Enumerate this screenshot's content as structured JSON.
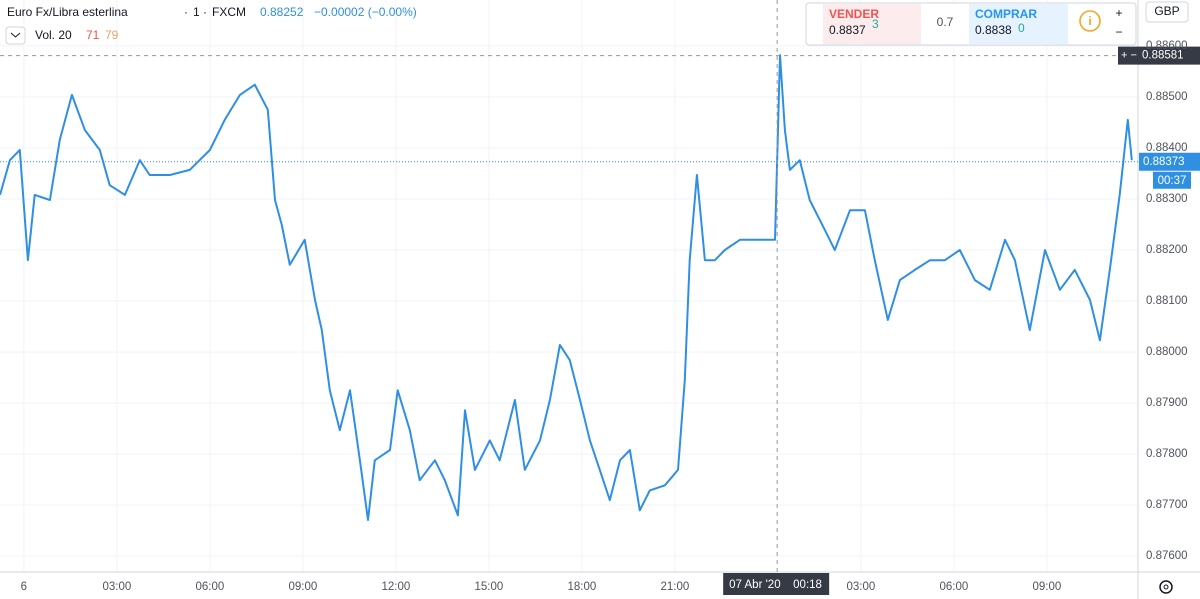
{
  "header": {
    "symbol": "Euro Fx/Libra esterlina",
    "interval": "1",
    "exchange": "FXCM",
    "price": "0.88252",
    "change": "−0.00002 (−0.00%)",
    "volume_label": "Vol. 20",
    "volume_a": "71",
    "volume_b": "79",
    "currency": "GBP"
  },
  "trade_panel": {
    "sell_label": "VENDER",
    "sell_price": "0.8837",
    "sell_sup": "3",
    "spread": "0.7",
    "buy_label": "COMPRAR",
    "buy_price": "0.8838",
    "buy_sup": "0"
  },
  "chart_data": {
    "type": "line",
    "x": [
      -0.77,
      -0.45,
      -0.13,
      0.13,
      0.35,
      0.84,
      1.16,
      1.55,
      1.97,
      2.45,
      2.77,
      3.26,
      3.74,
      4.06,
      4.71,
      5.35,
      6.0,
      6.48,
      6.97,
      7.45,
      7.87,
      8.1,
      8.32,
      8.58,
      9.06,
      9.39,
      9.61,
      9.87,
      10.19,
      10.52,
      10.84,
      11.1,
      11.32,
      11.81,
      12.06,
      12.45,
      12.77,
      13.26,
      13.58,
      14.0,
      14.23,
      14.55,
      15.03,
      15.35,
      15.84,
      16.16,
      16.65,
      16.97,
      17.29,
      17.61,
      17.94,
      18.26,
      18.58,
      18.9,
      19.23,
      19.55,
      19.87,
      20.19,
      20.68,
      21.1,
      21.32,
      21.48,
      21.71,
      21.97,
      22.29,
      22.61,
      23.1,
      23.74,
      24.23,
      24.39,
      24.55,
      24.71,
      25.03,
      25.35,
      25.84,
      26.16,
      26.65,
      27.13,
      27.45,
      27.87,
      28.26,
      28.74,
      29.23,
      29.71,
      30.19,
      30.68,
      31.16,
      31.65,
      31.97,
      32.45,
      32.94,
      33.42,
      33.9,
      34.39,
      34.71,
      35.03,
      35.35,
      35.61,
      35.74
    ],
    "series": [
      {
        "color": "#2f8fe3",
        "values": [
          0.88308,
          0.88376,
          0.88396,
          0.8818,
          0.88308,
          0.88298,
          0.88416,
          0.88504,
          0.88435,
          0.88396,
          0.88327,
          0.88308,
          0.88376,
          0.88347,
          0.88347,
          0.88357,
          0.88396,
          0.88455,
          0.88504,
          0.88524,
          0.88475,
          0.88298,
          0.88249,
          0.88171,
          0.8822,
          0.88102,
          0.88043,
          0.87925,
          0.87847,
          0.87925,
          0.87788,
          0.87671,
          0.87788,
          0.87808,
          0.87925,
          0.87847,
          0.87749,
          0.87788,
          0.87749,
          0.8768,
          0.87886,
          0.87769,
          0.87827,
          0.87788,
          0.87906,
          0.87769,
          0.87827,
          0.87906,
          0.88014,
          0.87984,
          0.87906,
          0.87827,
          0.87769,
          0.8771,
          0.87788,
          0.87808,
          0.8769,
          0.87729,
          0.87739,
          0.87769,
          0.87945,
          0.8818,
          0.88347,
          0.8818,
          0.8818,
          0.882,
          0.8822,
          0.8822,
          0.8822,
          0.88582,
          0.88435,
          0.88357,
          0.88376,
          0.88298,
          0.88239,
          0.882,
          0.88278,
          0.88278,
          0.8818,
          0.88063,
          0.88141,
          0.88161,
          0.8818,
          0.8818,
          0.882,
          0.88141,
          0.88122,
          0.8822,
          0.8818,
          0.88043,
          0.882,
          0.88122,
          0.88161,
          0.88102,
          0.88023,
          0.88161,
          0.88308,
          0.88455,
          0.88376
        ]
      }
    ],
    "xlim": [
      -0.77,
      35.94
    ],
    "xticks": [
      {
        "value": 0,
        "label": "6"
      },
      {
        "value": 3,
        "label": "03:00"
      },
      {
        "value": 6,
        "label": "06:00"
      },
      {
        "value": 9,
        "label": "09:00"
      },
      {
        "value": 12,
        "label": "12:00"
      },
      {
        "value": 15,
        "label": "15:00"
      },
      {
        "value": 18,
        "label": "18:00"
      },
      {
        "value": 21,
        "label": "21:00"
      },
      {
        "value": 27,
        "label": "03:00"
      },
      {
        "value": 30,
        "label": "06:00"
      },
      {
        "value": 33,
        "label": "09:00"
      }
    ],
    "ylim": [
      0.87569,
      0.8869
    ],
    "yticks": [
      {
        "value": 0.876,
        "label": "0.87600"
      },
      {
        "value": 0.877,
        "label": "0.87700"
      },
      {
        "value": 0.878,
        "label": "0.87800"
      },
      {
        "value": 0.879,
        "label": "0.87900"
      },
      {
        "value": 0.88,
        "label": "0.88000"
      },
      {
        "value": 0.881,
        "label": "0.88100"
      },
      {
        "value": 0.882,
        "label": "0.88200"
      },
      {
        "value": 0.883,
        "label": "0.88300"
      },
      {
        "value": 0.884,
        "label": "0.88400"
      },
      {
        "value": 0.885,
        "label": "0.88500"
      },
      {
        "value": 0.886,
        "label": "0.88600"
      }
    ],
    "grid": true,
    "last_price": 0.88373,
    "countdown": "00:37",
    "crosshair": {
      "x": 24.3,
      "price": 0.88581,
      "date_label": "07 Abr '20",
      "time_label": "00:18"
    }
  }
}
